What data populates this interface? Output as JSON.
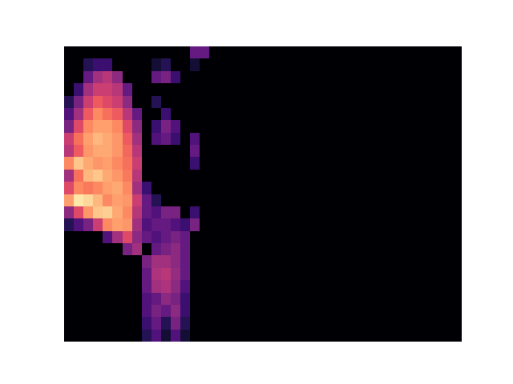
{
  "chart_data": {
    "type": "heatmap",
    "color": "magma",
    "tick_labels": false,
    "xlim": [
      0,
      41
    ],
    "ylim": [
      0,
      24
    ],
    "zlim": [
      0,
      1
    ],
    "z": [
      [
        0,
        0,
        0,
        0,
        0,
        0,
        0,
        0,
        0.15,
        0.25,
        0.1,
        0.25,
        0.1,
        0,
        0,
        0,
        0,
        0,
        0,
        0,
        0,
        0,
        0,
        0,
        0,
        0,
        0,
        0,
        0,
        0,
        0,
        0,
        0,
        0,
        0,
        0,
        0,
        0,
        0,
        0,
        0
      ],
      [
        0,
        0,
        0,
        0,
        0,
        0,
        0,
        0,
        0.2,
        0.3,
        0.15,
        0.35,
        0.15,
        0,
        0,
        0,
        0,
        0,
        0,
        0,
        0,
        0,
        0,
        0,
        0,
        0,
        0,
        0,
        0,
        0,
        0,
        0,
        0,
        0,
        0,
        0,
        0,
        0,
        0,
        0,
        0
      ],
      [
        0,
        0,
        0,
        0,
        0,
        0,
        0,
        0,
        0.25,
        0.35,
        0.3,
        0.4,
        0.2,
        0,
        0,
        0,
        0,
        0,
        0,
        0,
        0,
        0,
        0,
        0,
        0,
        0,
        0,
        0,
        0,
        0,
        0,
        0,
        0,
        0,
        0,
        0,
        0,
        0,
        0,
        0,
        0
      ],
      [
        0,
        0,
        0,
        0,
        0,
        0,
        0,
        0,
        0.25,
        0.3,
        0.4,
        0.35,
        0.2,
        0,
        0,
        0,
        0,
        0,
        0,
        0,
        0,
        0,
        0,
        0,
        0,
        0,
        0,
        0,
        0,
        0,
        0,
        0,
        0,
        0,
        0,
        0,
        0,
        0,
        0,
        0,
        0
      ],
      [
        0,
        0,
        0,
        0,
        0,
        0,
        0,
        0,
        0.3,
        0.45,
        0.48,
        0.4,
        0.25,
        0,
        0,
        0,
        0,
        0,
        0,
        0,
        0,
        0,
        0,
        0,
        0,
        0,
        0,
        0,
        0,
        0,
        0,
        0,
        0,
        0,
        0,
        0,
        0,
        0,
        0,
        0,
        0
      ],
      [
        0,
        0,
        0,
        0,
        0,
        0,
        0,
        0,
        0.3,
        0.48,
        0.5,
        0.42,
        0.3,
        0,
        0,
        0,
        0,
        0,
        0,
        0,
        0,
        0,
        0,
        0,
        0,
        0,
        0,
        0,
        0,
        0,
        0,
        0,
        0,
        0,
        0,
        0,
        0,
        0,
        0,
        0,
        0
      ],
      [
        0,
        0,
        0,
        0,
        0,
        0,
        0,
        0,
        0.35,
        0.45,
        0.45,
        0.4,
        0.3,
        0,
        0,
        0,
        0,
        0,
        0,
        0,
        0,
        0,
        0,
        0,
        0,
        0,
        0,
        0,
        0,
        0,
        0,
        0,
        0,
        0,
        0,
        0,
        0,
        0,
        0,
        0,
        0
      ],
      [
        0,
        0,
        0,
        0,
        0,
        0,
        0.35,
        0.45,
        0,
        0.3,
        0.35,
        0.4,
        0.3,
        0,
        0,
        0,
        0,
        0,
        0,
        0,
        0,
        0,
        0,
        0,
        0,
        0,
        0,
        0,
        0,
        0,
        0,
        0,
        0,
        0,
        0,
        0,
        0,
        0,
        0,
        0,
        0
      ],
      [
        0,
        0,
        0,
        0,
        0.25,
        0.45,
        0.6,
        0.4,
        0.3,
        0.25,
        0.3,
        0.35,
        0.3,
        0,
        0,
        0,
        0,
        0,
        0,
        0,
        0,
        0,
        0,
        0,
        0,
        0,
        0,
        0,
        0,
        0,
        0,
        0,
        0,
        0,
        0,
        0,
        0,
        0,
        0,
        0,
        0
      ],
      [
        0.15,
        0.25,
        0.35,
        0.55,
        0.75,
        0.8,
        0.78,
        0.45,
        0.25,
        0.3,
        0.3,
        0.25,
        0.2,
        0.35,
        0,
        0,
        0,
        0,
        0,
        0,
        0,
        0,
        0,
        0,
        0,
        0,
        0,
        0,
        0,
        0,
        0,
        0,
        0,
        0,
        0,
        0,
        0,
        0,
        0,
        0,
        0
      ],
      [
        0.4,
        0.6,
        0.78,
        0.88,
        0.9,
        0.82,
        0.75,
        0.5,
        0.3,
        0.25,
        0.35,
        0.35,
        0,
        0.2,
        0,
        0,
        0,
        0,
        0,
        0,
        0,
        0,
        0,
        0,
        0,
        0,
        0,
        0,
        0,
        0,
        0,
        0,
        0,
        0,
        0,
        0,
        0,
        0,
        0,
        0,
        0
      ],
      [
        0.8,
        0.95,
        0.92,
        0.85,
        0.75,
        0.8,
        0.78,
        0.55,
        0.3,
        0.15,
        0,
        0,
        0,
        0,
        0,
        0,
        0,
        0,
        0,
        0,
        0,
        0,
        0,
        0,
        0,
        0,
        0,
        0,
        0,
        0,
        0,
        0,
        0,
        0,
        0,
        0,
        0,
        0,
        0,
        0,
        0
      ],
      [
        0.6,
        0.75,
        0.72,
        0.75,
        0.8,
        0.82,
        0.75,
        0.45,
        0.2,
        0,
        0,
        0,
        0,
        0,
        0,
        0,
        0,
        0,
        0,
        0,
        0,
        0,
        0,
        0,
        0,
        0,
        0,
        0,
        0,
        0,
        0,
        0,
        0,
        0,
        0,
        0,
        0,
        0,
        0,
        0,
        0
      ],
      [
        0.45,
        0.7,
        0.85,
        0.88,
        0.82,
        0.78,
        0.72,
        0.5,
        0,
        0,
        0,
        0,
        0,
        0,
        0,
        0,
        0,
        0,
        0,
        0,
        0,
        0,
        0,
        0,
        0,
        0,
        0,
        0,
        0,
        0,
        0,
        0,
        0,
        0,
        0,
        0,
        0,
        0,
        0,
        0,
        0
      ],
      [
        0.75,
        0.88,
        0.82,
        0.78,
        0.8,
        0.75,
        0.7,
        0.55,
        0,
        0,
        0,
        0,
        0,
        0.2,
        0,
        0,
        0,
        0,
        0,
        0,
        0,
        0,
        0,
        0,
        0,
        0,
        0,
        0,
        0,
        0,
        0,
        0,
        0,
        0,
        0,
        0,
        0,
        0,
        0,
        0,
        0
      ],
      [
        0.5,
        0.65,
        0.78,
        0.82,
        0.82,
        0.78,
        0.68,
        0.5,
        0,
        0,
        0,
        0,
        0,
        0.3,
        0,
        0,
        0,
        0,
        0,
        0,
        0,
        0,
        0,
        0,
        0,
        0,
        0,
        0,
        0,
        0,
        0,
        0,
        0,
        0,
        0,
        0,
        0,
        0,
        0,
        0,
        0
      ],
      [
        0.55,
        0.7,
        0.8,
        0.85,
        0.82,
        0.78,
        0.65,
        0.45,
        0,
        0.25,
        0.3,
        0.2,
        0,
        0.25,
        0,
        0,
        0,
        0,
        0,
        0,
        0,
        0,
        0,
        0,
        0,
        0,
        0,
        0,
        0,
        0,
        0,
        0,
        0,
        0,
        0,
        0,
        0,
        0,
        0,
        0,
        0
      ],
      [
        0.35,
        0.6,
        0.75,
        0.8,
        0.8,
        0.75,
        0.6,
        0.4,
        0,
        0.2,
        0.35,
        0.25,
        0,
        0,
        0,
        0,
        0,
        0,
        0,
        0,
        0,
        0,
        0,
        0,
        0,
        0,
        0,
        0,
        0,
        0,
        0,
        0,
        0,
        0,
        0,
        0,
        0,
        0,
        0,
        0,
        0
      ],
      [
        0.25,
        0.45,
        0.65,
        0.75,
        0.7,
        0.65,
        0.5,
        0.3,
        0,
        0,
        0.2,
        0,
        0,
        0,
        0,
        0,
        0,
        0,
        0,
        0,
        0,
        0,
        0,
        0,
        0,
        0,
        0,
        0,
        0,
        0,
        0,
        0,
        0,
        0,
        0,
        0,
        0,
        0,
        0,
        0,
        0
      ],
      [
        0.15,
        0.35,
        0.55,
        0.65,
        0.6,
        0.55,
        0.4,
        0,
        0,
        0.15,
        0,
        0,
        0,
        0,
        0,
        0,
        0,
        0,
        0,
        0,
        0,
        0,
        0,
        0,
        0,
        0,
        0,
        0,
        0,
        0,
        0,
        0,
        0,
        0,
        0,
        0,
        0,
        0,
        0,
        0,
        0
      ],
      [
        0,
        0.2,
        0.45,
        0.55,
        0.55,
        0.5,
        0.3,
        0,
        0,
        0,
        0,
        0,
        0,
        0,
        0,
        0,
        0,
        0,
        0,
        0,
        0,
        0,
        0,
        0,
        0,
        0,
        0,
        0,
        0,
        0,
        0,
        0,
        0,
        0,
        0,
        0,
        0,
        0,
        0,
        0,
        0
      ],
      [
        0,
        0,
        0.3,
        0.45,
        0.5,
        0.4,
        0,
        0,
        0,
        0.3,
        0.35,
        0.2,
        0,
        0,
        0,
        0,
        0,
        0,
        0,
        0,
        0,
        0,
        0,
        0,
        0,
        0,
        0,
        0,
        0,
        0,
        0,
        0,
        0,
        0,
        0,
        0,
        0,
        0,
        0,
        0,
        0
      ],
      [
        0,
        0,
        0.15,
        0.2,
        0.2,
        0,
        0,
        0,
        0,
        0.1,
        0.15,
        0,
        0,
        0.1,
        0,
        0,
        0,
        0,
        0,
        0,
        0,
        0,
        0,
        0,
        0,
        0,
        0,
        0,
        0,
        0,
        0,
        0,
        0,
        0,
        0,
        0,
        0,
        0,
        0,
        0,
        0
      ],
      [
        0,
        0,
        0,
        0,
        0,
        0,
        0,
        0,
        0,
        0,
        0,
        0,
        0,
        0.3,
        0.3,
        0,
        0,
        0,
        0,
        0,
        0,
        0,
        0,
        0,
        0,
        0,
        0,
        0,
        0,
        0,
        0,
        0,
        0,
        0,
        0,
        0,
        0,
        0,
        0,
        0,
        0
      ]
    ]
  }
}
